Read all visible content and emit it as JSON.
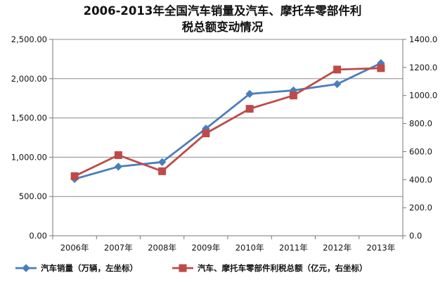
{
  "chart_data": {
    "type": "line",
    "title_line1": "2006-2013年全国汽车销量及汽车、摩托车零部件利",
    "title_line2": "税总额变动情况",
    "categories": [
      "2006年",
      "2007年",
      "2008年",
      "2009年",
      "2010年",
      "2011年",
      "2012年",
      "2013年"
    ],
    "series": [
      {
        "name": "汽车销量（万辆，左坐标）",
        "axis": "left",
        "color": "#4a7ebb",
        "marker": "diamond",
        "values": [
          722,
          880,
          938,
          1364,
          1806,
          1851,
          1931,
          2198
        ]
      },
      {
        "name": "汽车、摩托车零部件利税总额（亿元，右坐标）",
        "axis": "right",
        "color": "#be4b48",
        "marker": "square",
        "values": [
          425,
          575,
          460,
          730,
          905,
          1000,
          1185,
          1195
        ]
      }
    ],
    "y_left": {
      "min": 0,
      "max": 2500,
      "ticks": [
        "0.00",
        "500.00",
        "1,000.00",
        "1,500.00",
        "2,000.00",
        "2,500.00"
      ]
    },
    "y_right": {
      "min": 0,
      "max": 1400,
      "ticks": [
        "0.0",
        "200.0",
        "400.0",
        "600.0",
        "800.0",
        "1000.0",
        "1200.0",
        "1400.0"
      ]
    },
    "grid": "horizontal",
    "legend_position": "bottom"
  }
}
